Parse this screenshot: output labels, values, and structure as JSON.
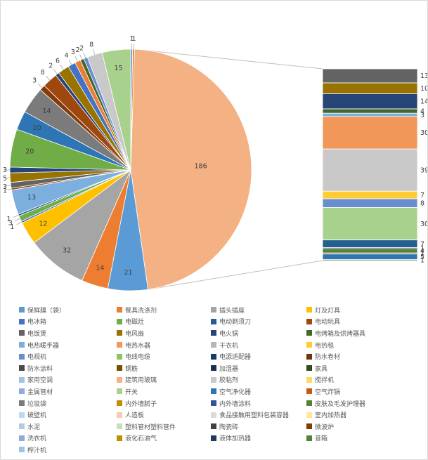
{
  "chart_data": {
    "type": "pie",
    "variant": "bar-of-pie",
    "title": "",
    "xlabel": "",
    "ylabel": "",
    "grid": false,
    "label_color": "#404040",
    "pie": {
      "slices_clockwise_from_top": [
        {
          "label": "1",
          "value": 1,
          "color": "#5B9BD5"
        },
        {
          "label": "1",
          "value": 1,
          "color": "#ED7D31"
        },
        {
          "label": "186",
          "value": 186,
          "color": "#F4B183"
        },
        {
          "label": "21",
          "value": 21,
          "color": "#5B9BD5"
        },
        {
          "label": "14",
          "value": 14,
          "color": "#ED7D31"
        },
        {
          "label": "32",
          "value": 32,
          "color": "#A5A5A5"
        },
        {
          "label": "12",
          "value": 12,
          "color": "#FFC000"
        },
        {
          "label": "1",
          "value": 1,
          "color": "#4472C4"
        },
        {
          "label": "3",
          "value": 3,
          "color": "#70AD47"
        },
        {
          "label": "1",
          "value": 1,
          "color": "#255E91"
        },
        {
          "label": "13",
          "value": 13,
          "color": "#7CAFDD"
        },
        {
          "label": "1",
          "value": 1,
          "color": "#9E480E"
        },
        {
          "label": "3",
          "value": 3,
          "color": "#636363"
        },
        {
          "label": "5",
          "value": 5,
          "color": "#997300"
        },
        {
          "label": "3",
          "value": 3,
          "color": "#264478"
        },
        {
          "label": "20",
          "value": 20,
          "color": "#70AD47"
        },
        {
          "label": "10",
          "value": 10,
          "color": "#2E75B6"
        },
        {
          "label": "14",
          "value": 14,
          "color": "#7B7B7B"
        },
        {
          "label": "3",
          "value": 3,
          "color": "#843C0C"
        },
        {
          "label": "8",
          "value": 8,
          "color": "#9E480E"
        },
        {
          "label": "2",
          "value": 2,
          "color": "#264478"
        },
        {
          "label": "6",
          "value": 6,
          "color": "#997300"
        },
        {
          "label": "4",
          "value": 4,
          "color": "#4472C4"
        },
        {
          "label": "3",
          "value": 3,
          "color": "#ED7D31"
        },
        {
          "label": "2",
          "value": 2,
          "color": "#43682B"
        },
        {
          "label": "2",
          "value": 2,
          "color": "#698ED0"
        },
        {
          "label": "8",
          "value": 8,
          "color": "#C9C9C9"
        },
        {
          "label": "15",
          "value": 15,
          "color": "#A9D18E"
        }
      ]
    },
    "bar": {
      "segments_top_to_bottom": [
        {
          "label": "13",
          "value": 13,
          "color": "#636363"
        },
        {
          "label": "10",
          "value": 10,
          "color": "#997300"
        },
        {
          "label": "14",
          "value": 14,
          "color": "#264478"
        },
        {
          "label": "4",
          "value": 4,
          "color": "#43682B"
        },
        {
          "label": "3",
          "value": 3,
          "color": "#7CAFDD"
        },
        {
          "label": "30",
          "value": 30,
          "color": "#F1975A"
        },
        {
          "label": "39",
          "value": 39,
          "color": "#C9C9C9"
        },
        {
          "label": "7",
          "value": 7,
          "color": "#FFCD33"
        },
        {
          "label": "8",
          "value": 8,
          "color": "#698ED0"
        },
        {
          "label": "30",
          "value": 30,
          "color": "#A9D18E"
        },
        {
          "label": "7",
          "value": 7,
          "color": "#255E91"
        },
        {
          "label": "1",
          "value": 1,
          "color": "#1F3864"
        },
        {
          "label": "4",
          "value": 4,
          "color": "#538135"
        },
        {
          "label": "1",
          "value": 1,
          "color": "#843C0C"
        },
        {
          "label": "5",
          "value": 5,
          "color": "#2E75B6"
        },
        {
          "label": "1",
          "value": 1,
          "color": "#375623"
        }
      ]
    },
    "legend": {
      "position": "bottom",
      "items": [
        {
          "label": "保鲜膜（袋）",
          "color": "#5B9BD5"
        },
        {
          "label": "餐具洗涤剂",
          "color": "#ED7D31"
        },
        {
          "label": "插头插座",
          "color": "#A5A5A5"
        },
        {
          "label": "灯及灯具",
          "color": "#FFC000"
        },
        {
          "label": "电冰箱",
          "color": "#4472C4"
        },
        {
          "label": "电磁灶",
          "color": "#70AD47"
        },
        {
          "label": "电动剃须刀",
          "color": "#255E91"
        },
        {
          "label": "电动玩具",
          "color": "#9E480E"
        },
        {
          "label": "电饭煲",
          "color": "#636363"
        },
        {
          "label": "电风扇",
          "color": "#997300"
        },
        {
          "label": "电火锅",
          "color": "#264478"
        },
        {
          "label": "电烤箱及烘烤器具",
          "color": "#43682B"
        },
        {
          "label": "电热暖手器",
          "color": "#7CAFDD"
        },
        {
          "label": "电热水器",
          "color": "#F1975A"
        },
        {
          "label": "干衣机",
          "color": "#B7B7B7"
        },
        {
          "label": "电热毯",
          "color": "#FFCD33"
        },
        {
          "label": "电视机",
          "color": "#698ED0"
        },
        {
          "label": "电线电缆",
          "color": "#8CC168"
        },
        {
          "label": "电源适配器",
          "color": "#153D64"
        },
        {
          "label": "防水卷材",
          "color": "#6F360B"
        },
        {
          "label": "防水涂料",
          "color": "#4A4A4A"
        },
        {
          "label": "钢筋",
          "color": "#734F00"
        },
        {
          "label": "加湿器",
          "color": "#1A2E51"
        },
        {
          "label": "家具",
          "color": "#2F4C1E"
        },
        {
          "label": "家用空调",
          "color": "#9DC3E6"
        },
        {
          "label": "建筑用玻璃",
          "color": "#F4B183"
        },
        {
          "label": "胶粘剂",
          "color": "#C9C9C9"
        },
        {
          "label": "搅拌机",
          "color": "#FFD966"
        },
        {
          "label": "金属管材",
          "color": "#8FAADC"
        },
        {
          "label": "开关",
          "color": "#A9D18E"
        },
        {
          "label": "空气净化器",
          "color": "#2E75B6"
        },
        {
          "label": "空气炸锅",
          "color": "#C55A11"
        },
        {
          "label": "垃圾袋",
          "color": "#7B7B7B"
        },
        {
          "label": "内外墙腻子",
          "color": "#BF8F00"
        },
        {
          "label": "内外墙涂料",
          "color": "#2F5597"
        },
        {
          "label": "皮肤及毛发护理器",
          "color": "#548235"
        },
        {
          "label": "破壁机",
          "color": "#BDD7EE"
        },
        {
          "label": "人造板",
          "color": "#F8CBAD"
        },
        {
          "label": "食品接触用塑料包装容器",
          "color": "#DBDBDB"
        },
        {
          "label": "室内加热器",
          "color": "#FFE699"
        },
        {
          "label": "水泥",
          "color": "#B4C7E7"
        },
        {
          "label": "塑料管材塑料管件",
          "color": "#C5E0B4"
        },
        {
          "label": "陶瓷砖",
          "color": "#404040"
        },
        {
          "label": "微波炉",
          "color": "#833C00"
        },
        {
          "label": "洗衣机",
          "color": "#8EAADB"
        },
        {
          "label": "液化石油气",
          "color": "#BF8F00"
        },
        {
          "label": "液体加热器",
          "color": "#1F3864"
        },
        {
          "label": "音箱",
          "color": "#538135"
        },
        {
          "label": "榨汁机",
          "color": "#9DC3E6"
        }
      ]
    }
  }
}
